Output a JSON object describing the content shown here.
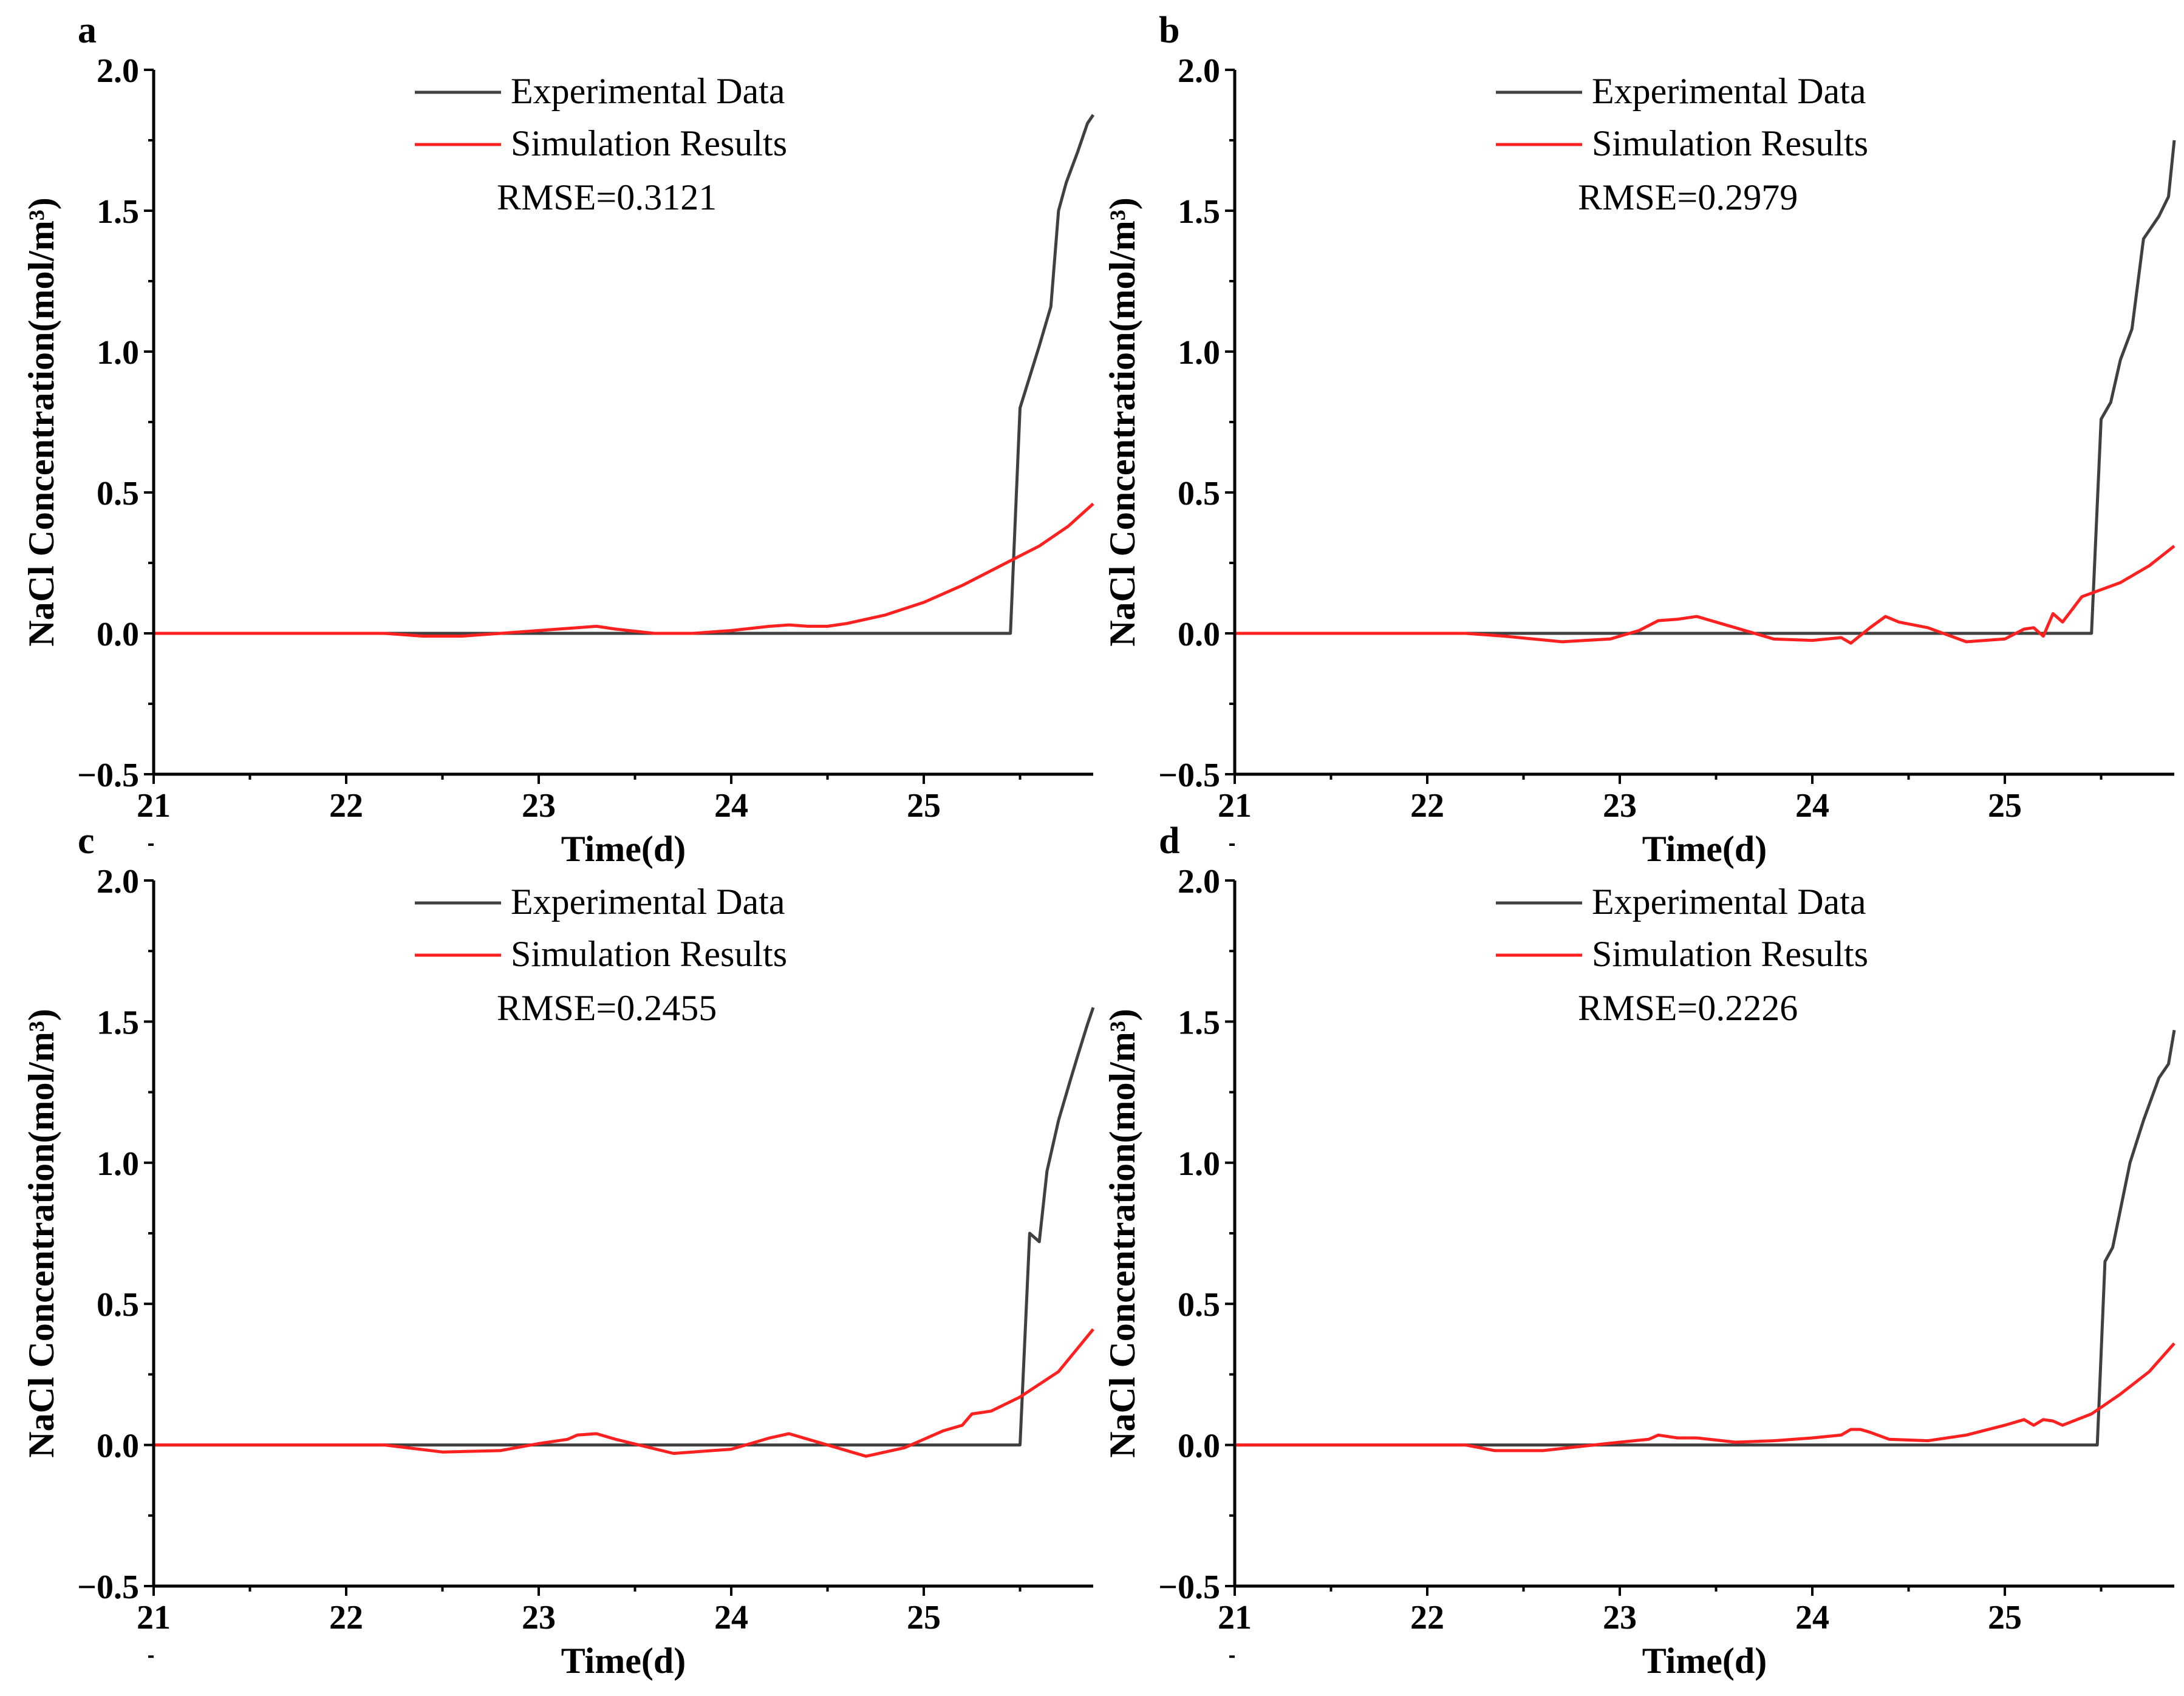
{
  "chart_data": [
    {
      "type": "line",
      "panel": "a",
      "xlabel": "Time(d)",
      "ylabel": "NaCl Concentration(mol/m³)",
      "xlim": [
        21,
        25.88
      ],
      "ylim": [
        -0.5,
        2.0
      ],
      "xticks": [
        "21",
        "22",
        "23",
        "24",
        "25"
      ],
      "yticks": [
        "−0.5",
        "0.0",
        "0.5",
        "1.0",
        "1.5",
        "2.0"
      ],
      "legend": [
        "Experimental Data",
        "Simulation Results"
      ],
      "annotation": "RMSE=0.3121",
      "colors": {
        "experimental": "#404040",
        "simulation": "#ff2020"
      },
      "series": [
        {
          "name": "Experimental Data",
          "x": [
            21,
            22.0,
            23.0,
            24.0,
            25.0,
            25.45,
            25.5,
            25.6,
            25.66,
            25.7,
            25.74,
            25.8,
            25.85,
            25.88
          ],
          "y": [
            0,
            0,
            0,
            0,
            0,
            0,
            0.8,
            1.02,
            1.16,
            1.5,
            1.6,
            1.71,
            1.81,
            1.84
          ]
        },
        {
          "name": "Simulation Results",
          "x": [
            21,
            22.2,
            22.4,
            22.6,
            22.9,
            23.1,
            23.2,
            23.3,
            23.4,
            23.6,
            23.8,
            24.0,
            24.2,
            24.3,
            24.4,
            24.5,
            24.6,
            24.8,
            25.0,
            25.2,
            25.4,
            25.6,
            25.75,
            25.88
          ],
          "y": [
            0,
            0,
            -0.01,
            -0.01,
            0.005,
            0.015,
            0.02,
            0.025,
            0.015,
            0.0,
            0.0,
            0.01,
            0.025,
            0.03,
            0.025,
            0.025,
            0.035,
            0.065,
            0.11,
            0.17,
            0.24,
            0.31,
            0.38,
            0.46
          ]
        }
      ]
    },
    {
      "type": "line",
      "panel": "b",
      "xlabel": "Time(d)",
      "ylabel": "NaCl Concentration(mol/m³)",
      "xlim": [
        21,
        25.88
      ],
      "ylim": [
        -0.5,
        2.0
      ],
      "xticks": [
        "21",
        "22",
        "23",
        "24",
        "25"
      ],
      "yticks": [
        "−0.5",
        "0.0",
        "0.5",
        "1.0",
        "1.5",
        "2.0"
      ],
      "legend": [
        "Experimental Data",
        "Simulation Results"
      ],
      "annotation": "RMSE=0.2979",
      "colors": {
        "experimental": "#404040",
        "simulation": "#ff2020"
      },
      "series": [
        {
          "name": "Experimental Data",
          "x": [
            21,
            22.0,
            23.0,
            24.0,
            25.0,
            25.45,
            25.5,
            25.55,
            25.6,
            25.66,
            25.72,
            25.8,
            25.85,
            25.88
          ],
          "y": [
            0,
            0,
            0,
            0,
            0,
            0,
            0.76,
            0.82,
            0.97,
            1.08,
            1.4,
            1.48,
            1.55,
            1.75
          ]
        },
        {
          "name": "Simulation Results",
          "x": [
            21,
            22.2,
            22.4,
            22.7,
            22.95,
            23.1,
            23.2,
            23.3,
            23.4,
            23.6,
            23.8,
            24.0,
            24.15,
            24.2,
            24.3,
            24.38,
            24.45,
            24.6,
            24.8,
            25.0,
            25.1,
            25.15,
            25.2,
            25.25,
            25.3,
            25.4,
            25.6,
            25.75,
            25.88
          ],
          "y": [
            0,
            0,
            -0.01,
            -0.03,
            -0.02,
            0.01,
            0.045,
            0.05,
            0.06,
            0.02,
            -0.02,
            -0.025,
            -0.015,
            -0.035,
            0.02,
            0.06,
            0.04,
            0.02,
            -0.03,
            -0.02,
            0.015,
            0.02,
            -0.01,
            0.07,
            0.04,
            0.13,
            0.18,
            0.24,
            0.31
          ]
        }
      ]
    },
    {
      "type": "line",
      "panel": "c",
      "xlabel": "Time(d)",
      "ylabel": "NaCl Concentration(mol/m³)",
      "xlim": [
        21,
        25.88
      ],
      "ylim": [
        -0.5,
        2.0
      ],
      "xticks": [
        "21",
        "22",
        "23",
        "24",
        "25"
      ],
      "yticks": [
        "−0.5",
        "0.0",
        "0.5",
        "1.0",
        "1.5",
        "2.0"
      ],
      "legend": [
        "Experimental Data",
        "Simulation Results"
      ],
      "annotation": "RMSE=0.2455",
      "colors": {
        "experimental": "#404040",
        "simulation": "#ff2020"
      },
      "series": [
        {
          "name": "Experimental Data",
          "x": [
            21,
            22.0,
            23.0,
            24.0,
            25.0,
            25.5,
            25.55,
            25.6,
            25.64,
            25.7,
            25.76,
            25.8,
            25.85,
            25.88
          ],
          "y": [
            0,
            0,
            0,
            0,
            0,
            0,
            0.75,
            0.72,
            0.97,
            1.15,
            1.29,
            1.38,
            1.49,
            1.55
          ]
        },
        {
          "name": "Simulation Results",
          "x": [
            21,
            22.2,
            22.5,
            22.8,
            23.0,
            23.15,
            23.2,
            23.3,
            23.4,
            23.7,
            24.0,
            24.2,
            24.3,
            24.4,
            24.7,
            24.9,
            25.1,
            25.2,
            25.25,
            25.35,
            25.5,
            25.7,
            25.88
          ],
          "y": [
            0,
            0,
            -0.025,
            -0.02,
            0.005,
            0.02,
            0.035,
            0.04,
            0.02,
            -0.03,
            -0.015,
            0.025,
            0.04,
            0.02,
            -0.04,
            -0.01,
            0.05,
            0.07,
            0.11,
            0.12,
            0.17,
            0.26,
            0.41
          ]
        }
      ]
    },
    {
      "type": "line",
      "panel": "d",
      "xlabel": "Time(d)",
      "ylabel": "NaCl Concentration(mol/m³)",
      "xlim": [
        21,
        25.88
      ],
      "ylim": [
        -0.5,
        2.0
      ],
      "xticks": [
        "21",
        "22",
        "23",
        "24",
        "25"
      ],
      "yticks": [
        "−0.5",
        "0.0",
        "0.5",
        "1.0",
        "1.5",
        "2.0"
      ],
      "legend": [
        "Experimental Data",
        "Simulation Results"
      ],
      "annotation": "RMSE=0.2226",
      "colors": {
        "experimental": "#404040",
        "simulation": "#ff2020"
      },
      "series": [
        {
          "name": "Experimental Data",
          "x": [
            21,
            22.0,
            23.0,
            24.0,
            25.0,
            25.48,
            25.52,
            25.56,
            25.65,
            25.72,
            25.8,
            25.85,
            25.88
          ],
          "y": [
            0,
            0,
            0,
            0,
            0,
            0,
            0.65,
            0.7,
            1.0,
            1.15,
            1.3,
            1.35,
            1.47
          ]
        },
        {
          "name": "Simulation Results",
          "x": [
            21,
            22.2,
            22.35,
            22.6,
            22.8,
            23.0,
            23.15,
            23.2,
            23.3,
            23.4,
            23.6,
            23.8,
            24.0,
            24.15,
            24.2,
            24.25,
            24.3,
            24.4,
            24.6,
            24.8,
            25.0,
            25.1,
            25.15,
            25.2,
            25.25,
            25.3,
            25.45,
            25.6,
            25.75,
            25.88
          ],
          "y": [
            0,
            0,
            -0.02,
            -0.02,
            -0.005,
            0.01,
            0.02,
            0.035,
            0.025,
            0.025,
            0.01,
            0.015,
            0.025,
            0.035,
            0.055,
            0.055,
            0.045,
            0.02,
            0.015,
            0.035,
            0.07,
            0.09,
            0.07,
            0.09,
            0.085,
            0.07,
            0.11,
            0.18,
            0.26,
            0.36
          ]
        }
      ]
    }
  ]
}
